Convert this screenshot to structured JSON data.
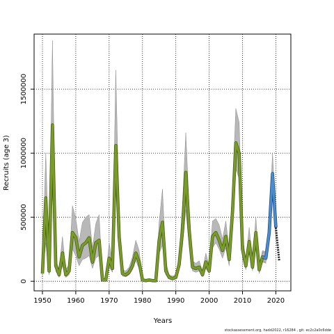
{
  "chart_data": {
    "type": "line",
    "title": "",
    "xlabel": "Years",
    "ylabel": "Recruits (age 3)",
    "xlim": [
      1947.5,
      2024.5
    ],
    "ylim": [
      -75000,
      1930000
    ],
    "x_ticks": [
      1950,
      1960,
      1970,
      1980,
      1990,
      2000,
      2010,
      2020
    ],
    "y_ticks": [
      0,
      500000,
      1000000,
      1500000
    ],
    "grid": true,
    "colors": {
      "band": "#b8b8b8",
      "band_edge": "#8a8a8a",
      "historical": "#7a9a2a",
      "historical_edge": "#3f5a10",
      "recent": "#4a8ec9",
      "recent_edge": "#1f3f8f",
      "projection": "#1a1a1a"
    },
    "x": [
      1950,
      1951,
      1952,
      1953,
      1954,
      1955,
      1956,
      1957,
      1958,
      1959,
      1960,
      1961,
      1962,
      1963,
      1964,
      1965,
      1966,
      1967,
      1968,
      1969,
      1970,
      1971,
      1972,
      1973,
      1974,
      1975,
      1976,
      1977,
      1978,
      1979,
      1980,
      1981,
      1982,
      1983,
      1984,
      1985,
      1986,
      1987,
      1988,
      1989,
      1990,
      1991,
      1992,
      1993,
      1994,
      1995,
      1996,
      1997,
      1998,
      1999,
      2000,
      2001,
      2002,
      2003,
      2004,
      2005,
      2006,
      2007,
      2008,
      2009,
      2010,
      2011,
      2012,
      2013,
      2014,
      2015,
      2016,
      2017,
      2018,
      2019,
      2020,
      2021
    ],
    "series": [
      {
        "kind": "historical",
        "median": [
          60000,
          650000,
          80000,
          1220000,
          120000,
          50000,
          220000,
          50000,
          80000,
          380000,
          340000,
          190000,
          280000,
          300000,
          340000,
          150000,
          300000,
          320000,
          10000,
          10000,
          180000,
          100000,
          1060000,
          350000,
          60000,
          50000,
          70000,
          120000,
          220000,
          150000,
          10000,
          5000,
          10000,
          5000,
          5000,
          320000,
          460000,
          80000,
          30000,
          20000,
          30000,
          130000,
          400000,
          850000,
          400000,
          110000,
          100000,
          110000,
          50000,
          150000,
          80000,
          350000,
          380000,
          320000,
          240000,
          350000,
          170000,
          540000,
          1080000,
          1000000,
          250000,
          120000,
          310000,
          110000,
          380000,
          90000,
          190000,
          180000,
          null,
          null,
          null,
          null
        ],
        "lower": [
          40000,
          300000,
          50000,
          700000,
          80000,
          30000,
          120000,
          30000,
          50000,
          250000,
          200000,
          120000,
          170000,
          180000,
          200000,
          100000,
          180000,
          200000,
          5000,
          5000,
          110000,
          70000,
          780000,
          250000,
          40000,
          35000,
          50000,
          90000,
          160000,
          100000,
          5000,
          3000,
          5000,
          3000,
          3000,
          220000,
          280000,
          50000,
          20000,
          15000,
          20000,
          90000,
          270000,
          560000,
          270000,
          80000,
          70000,
          80000,
          35000,
          100000,
          60000,
          260000,
          300000,
          250000,
          180000,
          260000,
          120000,
          420000,
          880000,
          800000,
          180000,
          90000,
          220000,
          80000,
          280000,
          60000,
          150000,
          140000,
          null,
          null,
          null,
          null
        ],
        "upper": [
          100000,
          1000000,
          150000,
          1880000,
          180000,
          80000,
          350000,
          90000,
          130000,
          590000,
          490000,
          310000,
          460000,
          500000,
          520000,
          260000,
          450000,
          520000,
          20000,
          20000,
          300000,
          160000,
          1650000,
          520000,
          90000,
          80000,
          110000,
          190000,
          320000,
          240000,
          20000,
          10000,
          20000,
          10000,
          10000,
          460000,
          720000,
          150000,
          50000,
          40000,
          50000,
          200000,
          600000,
          1160000,
          570000,
          160000,
          140000,
          160000,
          80000,
          220000,
          120000,
          470000,
          490000,
          440000,
          330000,
          470000,
          240000,
          720000,
          1350000,
          1240000,
          350000,
          170000,
          420000,
          150000,
          500000,
          130000,
          240000,
          230000,
          null,
          null,
          null,
          null
        ]
      },
      {
        "kind": "recent",
        "median": [
          null,
          null,
          null,
          null,
          null,
          null,
          null,
          null,
          null,
          null,
          null,
          null,
          null,
          null,
          null,
          null,
          null,
          null,
          null,
          null,
          null,
          null,
          null,
          null,
          null,
          null,
          null,
          null,
          null,
          null,
          null,
          null,
          null,
          null,
          null,
          null,
          null,
          null,
          null,
          null,
          null,
          null,
          null,
          null,
          null,
          null,
          null,
          null,
          null,
          null,
          null,
          null,
          null,
          null,
          null,
          null,
          null,
          null,
          null,
          null,
          null,
          null,
          null,
          null,
          null,
          null,
          190000,
          180000,
          380000,
          840000,
          420000,
          null
        ],
        "lower": [
          null,
          null,
          null,
          null,
          null,
          null,
          null,
          null,
          null,
          null,
          null,
          null,
          null,
          null,
          null,
          null,
          null,
          null,
          null,
          null,
          null,
          null,
          null,
          null,
          null,
          null,
          null,
          null,
          null,
          null,
          null,
          null,
          null,
          null,
          null,
          null,
          null,
          null,
          null,
          null,
          null,
          null,
          null,
          null,
          null,
          null,
          null,
          null,
          null,
          null,
          null,
          null,
          null,
          null,
          null,
          null,
          null,
          null,
          null,
          null,
          null,
          null,
          null,
          null,
          null,
          null,
          160000,
          150000,
          320000,
          700000,
          350000,
          null
        ],
        "upper": [
          null,
          null,
          null,
          null,
          null,
          null,
          null,
          null,
          null,
          null,
          null,
          null,
          null,
          null,
          null,
          null,
          null,
          null,
          null,
          null,
          null,
          null,
          null,
          null,
          null,
          null,
          null,
          null,
          null,
          null,
          null,
          null,
          null,
          null,
          null,
          null,
          null,
          null,
          null,
          null,
          null,
          null,
          null,
          null,
          null,
          null,
          null,
          null,
          null,
          null,
          null,
          null,
          null,
          null,
          null,
          null,
          null,
          null,
          null,
          null,
          null,
          null,
          null,
          null,
          null,
          null,
          230000,
          220000,
          440000,
          1000000,
          500000,
          null
        ]
      },
      {
        "kind": "projection",
        "median": [
          null,
          null,
          null,
          null,
          null,
          null,
          null,
          null,
          null,
          null,
          null,
          null,
          null,
          null,
          null,
          null,
          null,
          null,
          null,
          null,
          null,
          null,
          null,
          null,
          null,
          null,
          null,
          null,
          null,
          null,
          null,
          null,
          null,
          null,
          null,
          null,
          null,
          null,
          null,
          null,
          null,
          null,
          null,
          null,
          null,
          null,
          null,
          null,
          null,
          null,
          null,
          null,
          null,
          null,
          null,
          null,
          null,
          null,
          null,
          null,
          null,
          null,
          null,
          null,
          null,
          null,
          null,
          null,
          null,
          null,
          420000,
          160000
        ]
      }
    ]
  },
  "footer": "stockassessment.org, hadd2022, r16284 , git: ec2c2a0c6dde"
}
